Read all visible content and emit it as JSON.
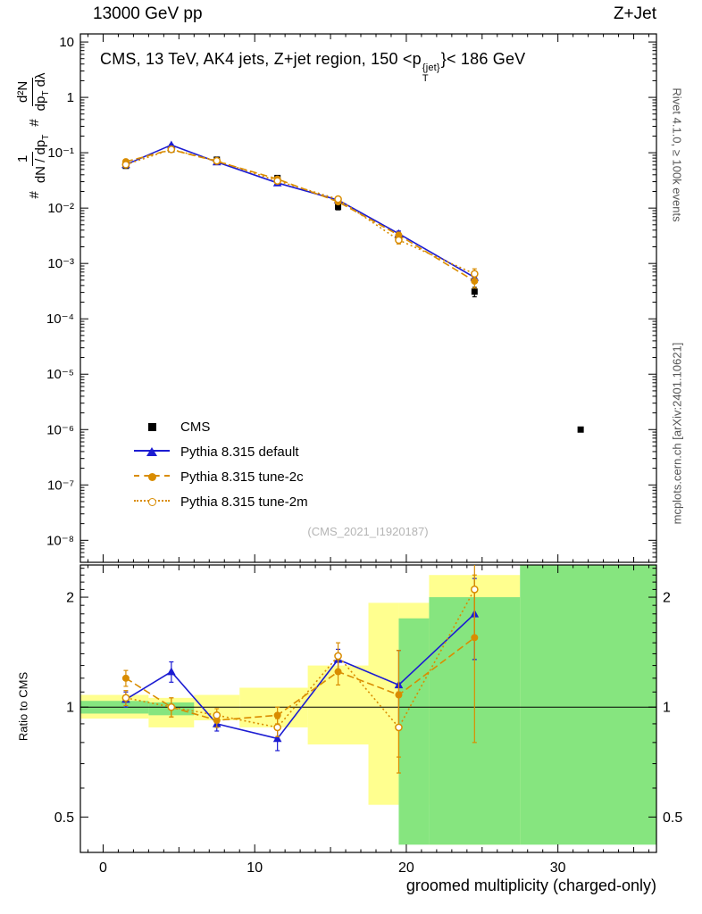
{
  "header": {
    "left": "13000 GeV pp",
    "right": "Z+Jet"
  },
  "captions": {
    "right_top": "Rivet 4.1.0, ≥ 100k events",
    "right_bottom": "mcplots.cern.ch [arXiv:2401.10621]",
    "watermark": "(CMS_2021_I1920187)"
  },
  "main_plot": {
    "title": {
      "pre": "CMS, 13 TeV, AK4 jets, Z+jet region, 150 <p",
      "sub": "T",
      "sup": "{jet}",
      "post": "}< 186 GeV"
    },
    "ylabel": {
      "hash1": "#",
      "num1": "1",
      "den1": "dN / dp",
      "den1_sub": "T",
      "hash2": "#",
      "num2": "d²N",
      "den2": "dp",
      "den2_sub": "T",
      "den2_tail": " dλ"
    }
  },
  "ratio_plot": {
    "ylabel": "Ratio to CMS",
    "xlabel": "groomed multiplicity (charged-only)"
  },
  "legend": {
    "items": [
      {
        "label": "CMS",
        "marker": "square",
        "color": "#000000",
        "line": "none"
      },
      {
        "label": "Pythia 8.315 default",
        "marker": "triangle",
        "color": "#1c1cd2",
        "line": "solid"
      },
      {
        "label": "Pythia 8.315 tune-2c",
        "marker": "circle",
        "color": "#d98c00",
        "line": "dashed"
      },
      {
        "label": "Pythia 8.315 tune-2m",
        "marker": "circle-open",
        "color": "#d98c00",
        "line": "dotted"
      }
    ]
  },
  "colors": {
    "blue": "#1c1cd2",
    "orange": "#d98c00",
    "band_yellow": "#ffff8f",
    "band_green": "#86e57f",
    "frame": "#000000",
    "watermark": "#b5b5b5"
  },
  "chart_data": [
    {
      "type": "line",
      "panel": "main",
      "yscale": "log",
      "xlim": [
        -1.5,
        36.5
      ],
      "ylim": [
        4e-09,
        14
      ],
      "yticks": [
        {
          "v": 10,
          "label": "10"
        },
        {
          "v": 1,
          "label": "1"
        },
        {
          "v": 0.1,
          "label": "10⁻¹"
        },
        {
          "v": 0.01,
          "label": "10⁻²"
        },
        {
          "v": 0.001,
          "label": "10⁻³"
        },
        {
          "v": 0.0001,
          "label": "10⁻⁴"
        },
        {
          "v": 1e-05,
          "label": "10⁻⁵"
        },
        {
          "v": 1e-06,
          "label": "10⁻⁶"
        },
        {
          "v": 1e-07,
          "label": "10⁻⁷"
        },
        {
          "v": 1e-08,
          "label": "10⁻⁸"
        }
      ],
      "series": [
        {
          "name": "CMS",
          "marker": "square",
          "line": "none",
          "color": "#000000",
          "x": [
            1.5,
            4.5,
            7.5,
            11.5,
            15.5,
            19.5,
            24.5,
            31.5
          ],
          "y": [
            0.058,
            0.115,
            0.075,
            0.035,
            0.0105,
            0.003,
            0.00031,
            1e-06
          ],
          "yerr": [
            0.004,
            0.006,
            0.004,
            0.002,
            0.0012,
            0.0004,
            6e-05,
            0
          ]
        },
        {
          "name": "Pythia 8.315 default",
          "marker": "triangle",
          "line": "solid",
          "color": "#1c1cd2",
          "x": [
            1.5,
            4.5,
            7.5,
            11.5,
            15.5,
            19.5,
            24.5
          ],
          "y": [
            0.061,
            0.138,
            0.068,
            0.0285,
            0.014,
            0.00345,
            0.00056
          ],
          "yerr": [
            0.002,
            0.004,
            0.002,
            0.0012,
            0.0008,
            0.0004,
            0.00012
          ]
        },
        {
          "name": "Pythia 8.315 tune-2c",
          "marker": "circle",
          "line": "dashed",
          "color": "#d98c00",
          "x": [
            1.5,
            4.5,
            7.5,
            11.5,
            15.5,
            19.5,
            24.5
          ],
          "y": [
            0.069,
            0.114,
            0.07,
            0.0335,
            0.013,
            0.00325,
            0.00048
          ],
          "yerr": [
            0.002,
            0.004,
            0.002,
            0.0012,
            0.0008,
            0.0004,
            0.00012
          ]
        },
        {
          "name": "Pythia 8.315 tune-2m",
          "marker": "circle-open",
          "line": "dotted",
          "color": "#d98c00",
          "x": [
            1.5,
            4.5,
            7.5,
            11.5,
            15.5,
            19.5,
            24.5
          ],
          "y": [
            0.061,
            0.115,
            0.0715,
            0.031,
            0.0145,
            0.00265,
            0.00065
          ],
          "yerr": [
            0.002,
            0.004,
            0.002,
            0.0012,
            0.0008,
            0.0004,
            0.00015
          ]
        }
      ]
    },
    {
      "type": "line",
      "panel": "ratio",
      "yscale": "log",
      "xlim": [
        -1.5,
        36.5
      ],
      "ylim": [
        0.4,
        2.45
      ],
      "reference_line": 1,
      "yticks": [
        {
          "v": 2,
          "label": "2"
        },
        {
          "v": 1,
          "label": "1"
        },
        {
          "v": 0.5,
          "label": "0.5"
        }
      ],
      "xticks": [
        {
          "v": 0,
          "label": "0"
        },
        {
          "v": 10,
          "label": "10"
        },
        {
          "v": 20,
          "label": "20"
        },
        {
          "v": 30,
          "label": "30"
        }
      ],
      "bands": [
        {
          "x0": -1.5,
          "x1": 3.0,
          "yellow": [
            0.93,
            1.08
          ],
          "green": [
            0.96,
            1.04
          ]
        },
        {
          "x0": 3.0,
          "x1": 6.0,
          "yellow": [
            0.88,
            1.06
          ],
          "green": [
            0.95,
            1.03
          ]
        },
        {
          "x0": 6.0,
          "x1": 9.0,
          "yellow": [
            0.92,
            1.08
          ],
          "green": null
        },
        {
          "x0": 9.0,
          "x1": 13.5,
          "yellow": [
            0.88,
            1.13
          ],
          "green": null
        },
        {
          "x0": 13.5,
          "x1": 17.5,
          "yellow": [
            0.79,
            1.3
          ],
          "green": null
        },
        {
          "x0": 17.5,
          "x1": 19.5,
          "yellow": [
            0.54,
            1.93
          ],
          "green": null
        },
        {
          "x0": 19.5,
          "x1": 21.5,
          "yellow": [
            0.54,
            1.93
          ],
          "green": [
            0.42,
            1.75
          ]
        },
        {
          "x0": 21.5,
          "x1": 27.5,
          "yellow": [
            0.42,
            2.3
          ],
          "green": [
            0.42,
            2.0
          ]
        },
        {
          "x0": 27.5,
          "x1": 36.5,
          "yellow": null,
          "green": [
            0.42,
            2.45
          ]
        }
      ],
      "series": [
        {
          "name": "Pythia 8.315 default",
          "marker": "triangle",
          "line": "solid",
          "color": "#1c1cd2",
          "x": [
            1.5,
            4.5,
            7.5,
            11.5,
            15.5,
            19.5,
            24.5
          ],
          "y": [
            1.05,
            1.25,
            0.9,
            0.82,
            1.35,
            1.15,
            1.8
          ],
          "yerr": [
            0.05,
            0.08,
            0.04,
            0.06,
            0.09,
            0.28,
            0.45
          ]
        },
        {
          "name": "Pythia 8.315 tune-2c",
          "marker": "circle",
          "line": "dashed",
          "color": "#d98c00",
          "x": [
            1.5,
            4.5,
            7.5,
            11.5,
            15.5,
            19.5,
            24.5
          ],
          "y": [
            1.2,
            1.0,
            0.92,
            0.95,
            1.25,
            1.08,
            1.55
          ],
          "yerr": [
            0.06,
            0.06,
            0.04,
            0.05,
            0.1,
            0.35,
            0.75
          ]
        },
        {
          "name": "Pythia 8.315 tune-2m",
          "marker": "circle-open",
          "line": "dotted",
          "color": "#d98c00",
          "x": [
            1.5,
            4.5,
            7.5,
            11.5,
            15.5,
            19.5,
            24.5
          ],
          "y": [
            1.06,
            1.0,
            0.95,
            0.88,
            1.38,
            0.88,
            2.1
          ],
          "yerr": [
            0.05,
            0.06,
            0.04,
            0.05,
            0.12,
            0.22,
            0.55
          ]
        }
      ]
    }
  ]
}
